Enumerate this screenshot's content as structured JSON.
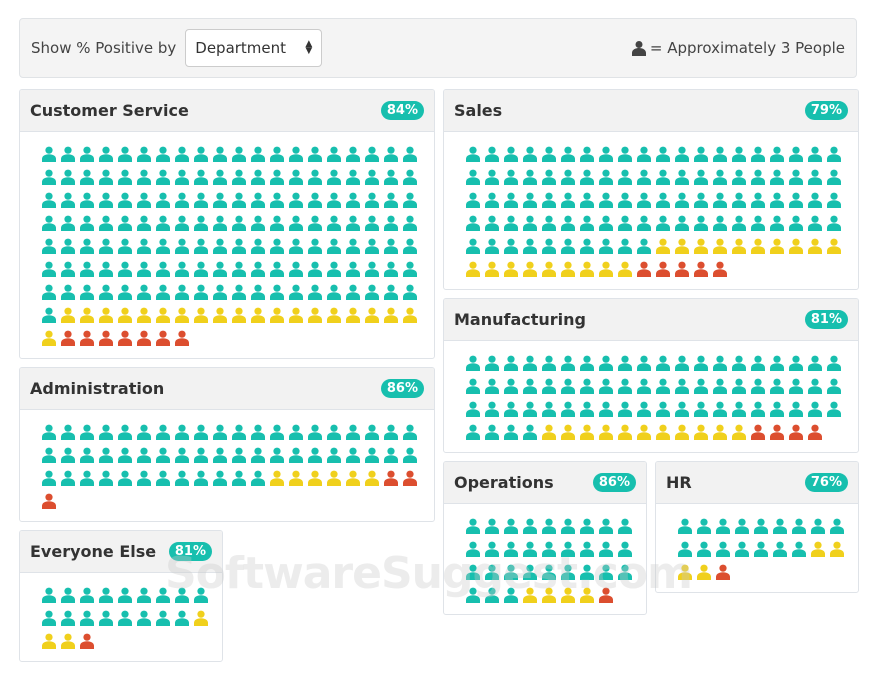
{
  "toolbar": {
    "label": "Show % Positive by",
    "select_value": "Department",
    "legend_text": "= Approximately 3 People"
  },
  "colors": {
    "positive": "#17bfae",
    "neutral": "#f0d01c",
    "negative": "#dc4e2f"
  },
  "panels": [
    {
      "name": "Customer Service",
      "pct": "84%",
      "positive": 141,
      "neutral": 20,
      "negative": 7
    },
    {
      "name": "Sales",
      "pct": "79%",
      "positive": 90,
      "neutral": 19,
      "negative": 5
    },
    {
      "name": "Manufacturing",
      "pct": "81%",
      "positive": 64,
      "neutral": 11,
      "negative": 4
    },
    {
      "name": "Administration",
      "pct": "86%",
      "positive": 52,
      "neutral": 6,
      "negative": 3
    },
    {
      "name": "Everyone Else",
      "pct": "81%",
      "positive": 17,
      "neutral": 3,
      "negative": 1
    },
    {
      "name": "Operations",
      "pct": "86%",
      "positive": 30,
      "neutral": 4,
      "negative": 1
    },
    {
      "name": "HR",
      "pct": "76%",
      "positive": 16,
      "neutral": 4,
      "negative": 1
    }
  ],
  "watermark": "SoftwareSuggest.com"
}
